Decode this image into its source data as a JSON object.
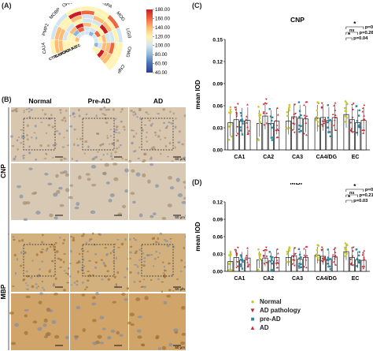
{
  "panels": {
    "a": "(A)",
    "b": "(B)",
    "c": "(C)",
    "d": "(D)"
  },
  "heatmap": {
    "genes": [
      "CA14",
      "PMP2",
      "MOBP",
      "OPALIN",
      "PLP1",
      "ASPA",
      "MOG",
      "LGI3",
      "OMG",
      "CNP"
    ],
    "rings": [
      "EC",
      "AD",
      "CA1",
      "CA2",
      "CA3",
      "CA4",
      "CTRL"
    ],
    "colorbar_ticks": [
      "180.00",
      "160.00",
      "140.00",
      "120.00",
      "100.00",
      "80.00",
      "60.00",
      "40.00"
    ],
    "colors": [
      "#2c3e94",
      "#4a6fb5",
      "#8fb6d8",
      "#d3e6ef",
      "#fff3b0",
      "#fdbb73",
      "#f0663f",
      "#c81d25"
    ]
  },
  "ihc": {
    "columns": [
      "Normal",
      "Pre-AD",
      "AD"
    ],
    "rows": [
      "CNP",
      "MBP"
    ],
    "scale_label": "50 μm",
    "scale_label_short": "50"
  },
  "chart_data": [
    {
      "type": "bar",
      "title": "CNP",
      "ylabel": "mean IOD",
      "categories": [
        "CA1",
        "CA2",
        "CA3",
        "CA4/DG",
        "EC"
      ],
      "ylim": [
        0,
        0.15
      ],
      "yticks": [
        "0.00",
        "0.03",
        "0.06",
        "0.09",
        "0.12",
        "0.15"
      ],
      "series": [
        {
          "name": "Normal",
          "values": [
            0.037,
            0.036,
            0.039,
            0.043,
            0.048
          ]
        },
        {
          "name": "AD pathology",
          "values": [
            0.041,
            0.046,
            0.045,
            0.044,
            0.041
          ]
        },
        {
          "name": "pre-AD",
          "values": [
            0.039,
            0.036,
            0.043,
            0.04,
            0.037
          ]
        },
        {
          "name": "AD",
          "values": [
            0.04,
            0.039,
            0.042,
            0.044,
            0.04
          ]
        }
      ],
      "annotations": [
        {
          "label": "*",
          "p": "p=0.04"
        },
        {
          "label": "ns",
          "p": "p=0.26"
        },
        {
          "label": "*",
          "p": "p=0.04"
        }
      ]
    },
    {
      "type": "bar",
      "title": "MBP",
      "ylabel": "mean IOD",
      "categories": [
        "CA1",
        "CA2",
        "CA3",
        "CA4/DG",
        "EC"
      ],
      "ylim": [
        0,
        0.12
      ],
      "yticks": [
        "0.00",
        "0.03",
        "0.06",
        "0.09",
        "0.12"
      ],
      "series": [
        {
          "name": "Normal",
          "values": [
            0.017,
            0.02,
            0.024,
            0.028,
            0.034
          ]
        },
        {
          "name": "AD pathology",
          "values": [
            0.024,
            0.023,
            0.027,
            0.026,
            0.024
          ]
        },
        {
          "name": "pre-AD",
          "values": [
            0.019,
            0.018,
            0.021,
            0.021,
            0.02
          ]
        },
        {
          "name": "AD",
          "values": [
            0.023,
            0.024,
            0.024,
            0.025,
            0.019
          ]
        }
      ],
      "annotations": [
        {
          "label": "*",
          "p": "p=0.03"
        },
        {
          "label": "ns",
          "p": "p=0.21"
        },
        {
          "label": "*",
          "p": "p=0.03"
        }
      ]
    }
  ],
  "legend": [
    {
      "name": "Normal",
      "color": "#c8c82a",
      "marker": "●"
    },
    {
      "name": "AD pathology",
      "color": "#c0242e",
      "marker": "▼"
    },
    {
      "name": "pre-AD",
      "color": "#2a8aa8",
      "marker": "■"
    },
    {
      "name": "AD",
      "color": "#d8283a",
      "marker": "▲"
    }
  ]
}
